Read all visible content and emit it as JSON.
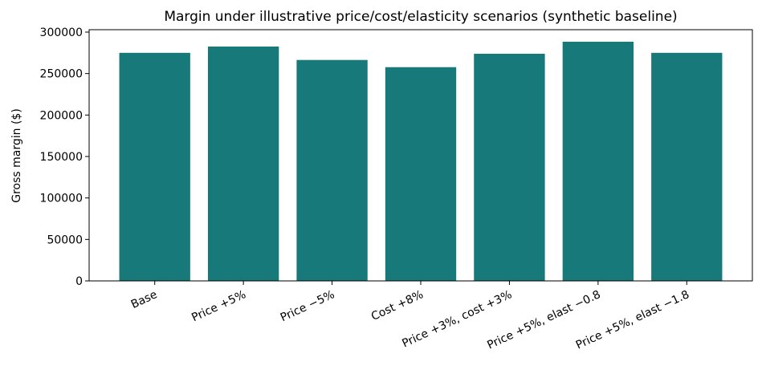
{
  "chart_data": {
    "type": "bar",
    "title": "Margin under illustrative price/cost/elasticity scenarios (synthetic baseline)",
    "xlabel": "",
    "ylabel": "Gross margin ($)",
    "categories": [
      "Base",
      "Price +5%",
      "Price −5%",
      "Cost +8%",
      "Price +3%, cost +3%",
      "Price +5%, elast −0.8",
      "Price +5%, elast −1.8"
    ],
    "values": [
      275000,
      282600,
      266400,
      257700,
      273900,
      288400,
      275000
    ],
    "ylim": [
      0,
      302900
    ],
    "yticks": [
      0,
      50000,
      100000,
      150000,
      200000,
      250000,
      300000
    ],
    "grid": false,
    "bar_color": "#17797A"
  }
}
